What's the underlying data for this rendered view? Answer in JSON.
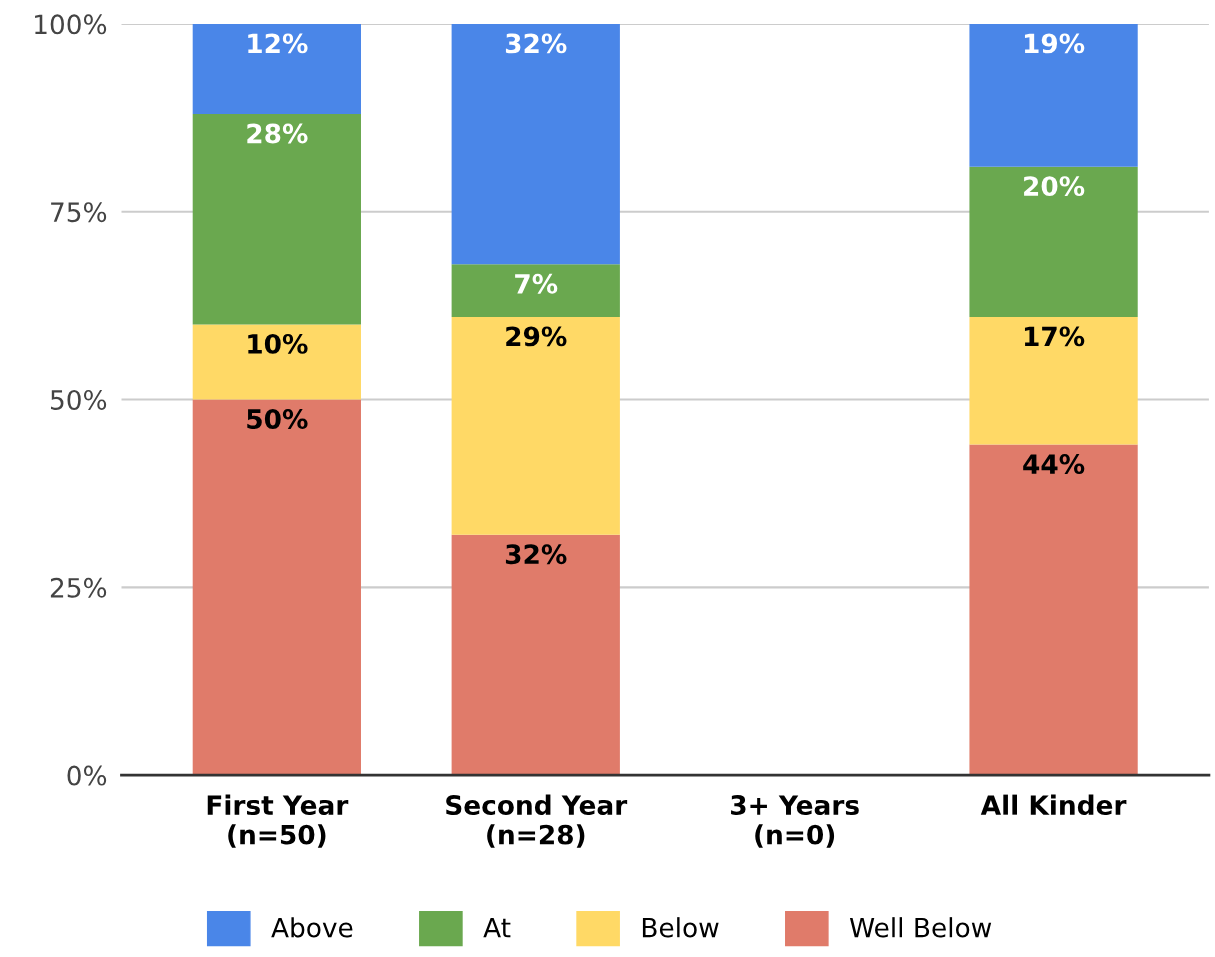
{
  "chart_data": {
    "type": "bar",
    "stacked": true,
    "categories": [
      "First Year\n(n=50)",
      "Second Year\n(n=28)",
      "3+ Years\n(n=0)",
      "All Kinder"
    ],
    "series": [
      {
        "name": "Well Below",
        "color": "#e07b6a",
        "values": [
          50,
          32,
          null,
          44
        ],
        "value_labels": [
          "50%",
          "32%",
          null,
          "44%"
        ]
      },
      {
        "name": "Below",
        "color": "#ffd966",
        "values": [
          10,
          29,
          null,
          17
        ],
        "value_labels": [
          "10%",
          "29%",
          null,
          "17%"
        ]
      },
      {
        "name": "At",
        "color": "#6aa84f",
        "values": [
          28,
          7,
          null,
          20
        ],
        "value_labels": [
          "28%",
          "7%",
          null,
          "20%"
        ]
      },
      {
        "name": "Above",
        "color": "#4a86e8",
        "values": [
          12,
          32,
          null,
          19
        ],
        "value_labels": [
          "12%",
          "32%",
          null,
          "19%"
        ]
      }
    ],
    "ylim": [
      0,
      100
    ],
    "yticks": [
      {
        "value": 0,
        "label": "0%"
      },
      {
        "value": 25,
        "label": "25%"
      },
      {
        "value": 50,
        "label": "50%"
      },
      {
        "value": 75,
        "label": "75%"
      },
      {
        "value": 100,
        "label": "100%"
      }
    ],
    "grid": "y",
    "legend": "bottom"
  }
}
